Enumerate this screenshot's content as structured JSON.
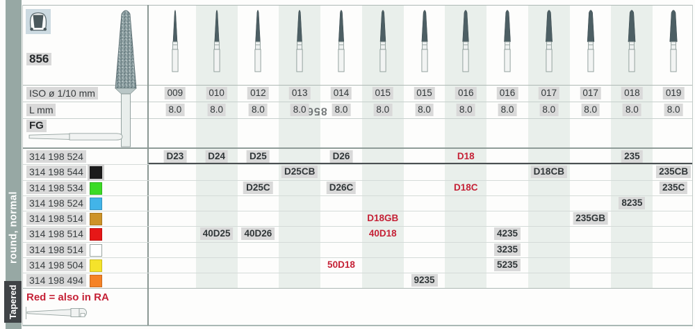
{
  "sidebar": {
    "primary_label": "Tapered",
    "secondary_label": "round, normal"
  },
  "header": {
    "figure_number": "856",
    "iso_label": "ISO ø 1/10 mm",
    "l_label": "L mm",
    "shank_label": "FG",
    "watermark": "856",
    "iso_values": [
      "009",
      "010",
      "012",
      "013",
      "014",
      "015",
      "015",
      "016",
      "016",
      "017",
      "017",
      "018",
      "019"
    ],
    "l_values": [
      "8.0",
      "8.0",
      "8.0",
      "8.0",
      "8.0",
      "8.0",
      "8.0",
      "8.0",
      "8.0",
      "8.0",
      "8.0",
      "8.0",
      "8.0"
    ]
  },
  "grit_rows": [
    {
      "order_number": "314 198 524",
      "swatch_name": "none",
      "swatch_color": null,
      "cells": [
        {
          "col": 1,
          "code": "D23"
        },
        {
          "col": 2,
          "code": "D24"
        },
        {
          "col": 3,
          "code": "D25"
        },
        {
          "col": 5,
          "code": "D26"
        },
        {
          "col": 8,
          "code": "D18",
          "red": true
        },
        {
          "col": 12,
          "code": "235"
        }
      ]
    },
    {
      "order_number": "314 198 544",
      "swatch_name": "black",
      "swatch_color": "#1c1c1c",
      "swatch_boxed": true,
      "cells": [
        {
          "col": 4,
          "code": "D25CB"
        },
        {
          "col": 10,
          "code": "D18CB"
        },
        {
          "col": 13,
          "code": "235CB"
        }
      ]
    },
    {
      "order_number": "314 198 534",
      "swatch_name": "green",
      "swatch_color": "#3bdb25",
      "cells": [
        {
          "col": 3,
          "code": "D25C"
        },
        {
          "col": 5,
          "code": "D26C"
        },
        {
          "col": 8,
          "code": "D18C",
          "red": true
        },
        {
          "col": 13,
          "code": "235C"
        }
      ]
    },
    {
      "order_number": "314 198 524",
      "swatch_name": "light-blue",
      "swatch_color": "#42b4e8",
      "cells": [
        {
          "col": 12,
          "code": "8235"
        }
      ]
    },
    {
      "order_number": "314 198 514",
      "swatch_name": "ochre",
      "swatch_color": "#cd9328",
      "cells": [
        {
          "col": 6,
          "code": "D18GB",
          "red": true
        },
        {
          "col": 11,
          "code": "235GB"
        }
      ]
    },
    {
      "order_number": "314 198 514",
      "swatch_name": "red",
      "swatch_color": "#e61717",
      "cells": [
        {
          "col": 2,
          "code": "40D25"
        },
        {
          "col": 3,
          "code": "40D26"
        },
        {
          "col": 6,
          "code": "40D18",
          "red": true
        },
        {
          "col": 9,
          "code": "4235"
        }
      ]
    },
    {
      "order_number": "314 198 514",
      "swatch_name": "white",
      "swatch_color": "#ffffff",
      "swatch_border": true,
      "cells": [
        {
          "col": 9,
          "code": "3235"
        }
      ]
    },
    {
      "order_number": "314 198 504",
      "swatch_name": "yellow",
      "swatch_color": "#f5e32b",
      "cells": [
        {
          "col": 5,
          "code": "50D18",
          "red": true
        },
        {
          "col": 9,
          "code": "5235"
        }
      ]
    },
    {
      "order_number": "314 198 494",
      "swatch_name": "orange",
      "swatch_color": "#f58226",
      "cells": [
        {
          "col": 7,
          "code": "9235"
        }
      ]
    }
  ],
  "footer": {
    "note": "Red = also in RA"
  },
  "icons": {
    "shape_icon": "prepared-tooth-icon",
    "bur_illustration": "tapered-round-end-bur-icon",
    "fg_shank": "friction-grip-shank-icon",
    "ra_shank": "right-angle-latch-shank-icon"
  },
  "colors": {
    "accent_red": "#c52136",
    "sidebar": "#97a8a4",
    "sidebar_badge": "#3f4346",
    "column_stripe": "#e9efeb",
    "text_highlight": "#d9d9d9",
    "bur_head": "#4d5f64"
  }
}
